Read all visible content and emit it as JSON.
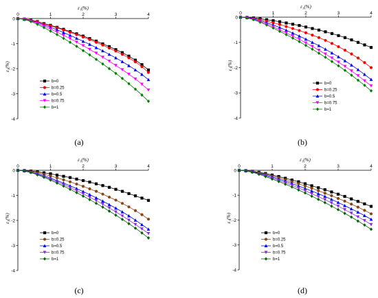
{
  "chart_data": [
    {
      "type": "line",
      "panel_label": "(a)",
      "xlabel": "ε₁(%)",
      "ylabel": "ε₃(%)",
      "xlim": [
        0,
        4
      ],
      "ylim": [
        -4,
        0
      ],
      "xticks": [
        "0",
        "1",
        "2",
        "3",
        "4"
      ],
      "yticks": [
        "0",
        "-1",
        "-2",
        "-3",
        "-4"
      ],
      "legend_position": "lower-left",
      "x": [
        0,
        0.2,
        0.4,
        0.6,
        0.8,
        1.0,
        1.2,
        1.4,
        1.6,
        1.8,
        2.0,
        2.2,
        2.4,
        2.6,
        2.8,
        3.0,
        3.2,
        3.4,
        3.6,
        3.8,
        4.0
      ],
      "series": [
        {
          "name": "b=0",
          "color": "#000000",
          "marker": "square",
          "values": [
            0,
            -0.02,
            -0.06,
            -0.12,
            -0.2,
            -0.27,
            -0.35,
            -0.43,
            -0.52,
            -0.61,
            -0.7,
            -0.8,
            -0.9,
            -1.01,
            -1.12,
            -1.24,
            -1.36,
            -1.5,
            -1.66,
            -1.84,
            -2.05
          ]
        },
        {
          "name": "b=0.25",
          "color": "#ff0000",
          "marker": "circle",
          "values": [
            0,
            -0.02,
            -0.07,
            -0.13,
            -0.21,
            -0.29,
            -0.37,
            -0.46,
            -0.55,
            -0.64,
            -0.74,
            -0.84,
            -0.95,
            -1.06,
            -1.18,
            -1.3,
            -1.43,
            -1.57,
            -1.73,
            -1.92,
            -2.15
          ]
        },
        {
          "name": "b=0.5",
          "color": "#0000ff",
          "marker": "triangle-up",
          "values": [
            0,
            -0.03,
            -0.08,
            -0.16,
            -0.25,
            -0.35,
            -0.45,
            -0.56,
            -0.67,
            -0.79,
            -0.91,
            -1.03,
            -1.16,
            -1.29,
            -1.43,
            -1.57,
            -1.72,
            -1.88,
            -2.05,
            -2.23,
            -2.44
          ]
        },
        {
          "name": "b=0.75",
          "color": "#ff00ff",
          "marker": "triangle-down",
          "values": [
            0,
            -0.03,
            -0.1,
            -0.19,
            -0.3,
            -0.42,
            -0.54,
            -0.67,
            -0.8,
            -0.94,
            -1.08,
            -1.23,
            -1.38,
            -1.54,
            -1.7,
            -1.87,
            -2.04,
            -2.22,
            -2.41,
            -2.62,
            -2.85
          ]
        },
        {
          "name": "b=1",
          "color": "#008000",
          "marker": "diamond",
          "values": [
            0,
            -0.04,
            -0.12,
            -0.23,
            -0.36,
            -0.5,
            -0.64,
            -0.79,
            -0.95,
            -1.11,
            -1.28,
            -1.45,
            -1.63,
            -1.81,
            -2.0,
            -2.19,
            -2.39,
            -2.6,
            -2.82,
            -3.05,
            -3.3
          ]
        }
      ]
    },
    {
      "type": "line",
      "panel_label": "(b)",
      "xlabel": "ε₁(%)",
      "ylabel": "ε₃(%)",
      "xlim": [
        0,
        4
      ],
      "ylim": [
        -4,
        0
      ],
      "xticks": [
        "0",
        "1",
        "2",
        "3",
        "4"
      ],
      "yticks": [
        "0",
        "-1",
        "-2",
        "-3",
        "-4"
      ],
      "legend_position": "lower-right",
      "x": [
        0,
        0.2,
        0.4,
        0.6,
        0.8,
        1.0,
        1.2,
        1.4,
        1.6,
        1.8,
        2.0,
        2.2,
        2.4,
        2.6,
        2.8,
        3.0,
        3.2,
        3.4,
        3.6,
        3.8,
        4.0
      ],
      "series": [
        {
          "name": "b=0",
          "color": "#000000",
          "marker": "square",
          "values": [
            0,
            -0.01,
            -0.03,
            -0.06,
            -0.1,
            -0.14,
            -0.18,
            -0.23,
            -0.28,
            -0.33,
            -0.39,
            -0.45,
            -0.51,
            -0.58,
            -0.65,
            -0.73,
            -0.81,
            -0.9,
            -1.0,
            -1.1,
            -1.2
          ]
        },
        {
          "name": "b=0.25",
          "color": "#ff0000",
          "marker": "circle",
          "values": [
            0,
            -0.02,
            -0.05,
            -0.1,
            -0.16,
            -0.22,
            -0.29,
            -0.37,
            -0.45,
            -0.53,
            -0.62,
            -0.71,
            -0.81,
            -0.92,
            -1.04,
            -1.17,
            -1.31,
            -1.46,
            -1.62,
            -1.8,
            -2.0
          ]
        },
        {
          "name": "b=0.5",
          "color": "#0000ff",
          "marker": "triangle-up",
          "values": [
            0,
            -0.02,
            -0.07,
            -0.14,
            -0.22,
            -0.31,
            -0.41,
            -0.52,
            -0.63,
            -0.75,
            -0.87,
            -1.0,
            -1.13,
            -1.27,
            -1.42,
            -1.57,
            -1.73,
            -1.9,
            -2.08,
            -2.27,
            -2.47
          ]
        },
        {
          "name": "b=0.75",
          "color": "#ff00ff",
          "marker": "triangle-down",
          "values": [
            0,
            -0.03,
            -0.09,
            -0.17,
            -0.27,
            -0.38,
            -0.5,
            -0.62,
            -0.75,
            -0.88,
            -1.02,
            -1.16,
            -1.31,
            -1.46,
            -1.62,
            -1.78,
            -1.95,
            -2.13,
            -2.32,
            -2.52,
            -2.72
          ]
        },
        {
          "name": "b=1",
          "color": "#008000",
          "marker": "diamond",
          "values": [
            0,
            -0.03,
            -0.1,
            -0.2,
            -0.31,
            -0.43,
            -0.56,
            -0.69,
            -0.83,
            -0.97,
            -1.12,
            -1.27,
            -1.43,
            -1.59,
            -1.76,
            -1.93,
            -2.11,
            -2.3,
            -2.5,
            -2.7,
            -2.92
          ]
        }
      ]
    },
    {
      "type": "line",
      "panel_label": "(c)",
      "xlabel": "ε₁(%)",
      "ylabel": "ε₃(%)",
      "xlim": [
        0,
        4
      ],
      "ylim": [
        -4,
        0
      ],
      "xticks": [
        "0",
        "1",
        "2",
        "3",
        "4"
      ],
      "yticks": [
        "0",
        "-1",
        "-2",
        "-3",
        "-4"
      ],
      "legend_position": "lower-left",
      "x": [
        0,
        0.2,
        0.4,
        0.6,
        0.8,
        1.0,
        1.2,
        1.4,
        1.6,
        1.8,
        2.0,
        2.2,
        2.4,
        2.6,
        2.8,
        3.0,
        3.2,
        3.4,
        3.6,
        3.8,
        4.0
      ],
      "series": [
        {
          "name": "b=0",
          "color": "#000000",
          "marker": "square",
          "values": [
            0,
            -0.01,
            -0.03,
            -0.06,
            -0.1,
            -0.14,
            -0.19,
            -0.24,
            -0.29,
            -0.35,
            -0.41,
            -0.47,
            -0.54,
            -0.61,
            -0.68,
            -0.76,
            -0.84,
            -0.93,
            -1.02,
            -1.11,
            -1.2
          ]
        },
        {
          "name": "b=0.25",
          "color": "#8b4513",
          "marker": "circle",
          "values": [
            0,
            -0.02,
            -0.05,
            -0.1,
            -0.16,
            -0.23,
            -0.3,
            -0.38,
            -0.46,
            -0.55,
            -0.64,
            -0.74,
            -0.84,
            -0.95,
            -1.07,
            -1.19,
            -1.32,
            -1.46,
            -1.61,
            -1.77,
            -1.95
          ]
        },
        {
          "name": "b=0.5",
          "color": "#0000ff",
          "marker": "triangle-up",
          "values": [
            0,
            -0.02,
            -0.07,
            -0.14,
            -0.22,
            -0.31,
            -0.41,
            -0.51,
            -0.62,
            -0.73,
            -0.85,
            -0.97,
            -1.1,
            -1.23,
            -1.37,
            -1.51,
            -1.66,
            -1.82,
            -1.99,
            -2.17,
            -2.35
          ]
        },
        {
          "name": "b=0.75",
          "color": "#8a2be2",
          "marker": "triangle-down",
          "values": [
            0,
            -0.03,
            -0.08,
            -0.16,
            -0.25,
            -0.35,
            -0.46,
            -0.57,
            -0.69,
            -0.81,
            -0.94,
            -1.07,
            -1.21,
            -1.35,
            -1.5,
            -1.66,
            -1.82,
            -1.99,
            -2.16,
            -2.34,
            -2.52
          ]
        },
        {
          "name": "b=1",
          "color": "#006400",
          "marker": "diamond",
          "values": [
            0,
            -0.03,
            -0.09,
            -0.18,
            -0.28,
            -0.39,
            -0.51,
            -0.63,
            -0.76,
            -0.89,
            -1.03,
            -1.17,
            -1.32,
            -1.47,
            -1.63,
            -1.79,
            -1.96,
            -2.13,
            -2.31,
            -2.5,
            -2.7
          ]
        }
      ]
    },
    {
      "type": "line",
      "panel_label": "(d)",
      "xlabel": "ε₁(%)",
      "ylabel": "ε₃(%)",
      "xlim": [
        0,
        4
      ],
      "ylim": [
        -4,
        0
      ],
      "xticks": [
        "0",
        "1",
        "2",
        "3",
        "4"
      ],
      "yticks": [
        "0",
        "-1",
        "-2",
        "-3",
        "-4"
      ],
      "legend_position": "lower-left",
      "x": [
        0,
        0.2,
        0.4,
        0.6,
        0.8,
        1.0,
        1.2,
        1.4,
        1.6,
        1.8,
        2.0,
        2.2,
        2.4,
        2.6,
        2.8,
        3.0,
        3.2,
        3.4,
        3.6,
        3.8,
        4.0
      ],
      "series": [
        {
          "name": "b=0",
          "color": "#000000",
          "marker": "square",
          "values": [
            0,
            -0.01,
            -0.04,
            -0.08,
            -0.13,
            -0.19,
            -0.25,
            -0.32,
            -0.39,
            -0.46,
            -0.54,
            -0.62,
            -0.7,
            -0.78,
            -0.87,
            -0.96,
            -1.05,
            -1.15,
            -1.25,
            -1.35,
            -1.45
          ]
        },
        {
          "name": "b=0.25",
          "color": "#8b4513",
          "marker": "circle",
          "values": [
            0,
            -0.02,
            -0.05,
            -0.1,
            -0.16,
            -0.23,
            -0.3,
            -0.38,
            -0.46,
            -0.54,
            -0.63,
            -0.72,
            -0.82,
            -0.92,
            -1.02,
            -1.13,
            -1.24,
            -1.36,
            -1.48,
            -1.61,
            -1.75
          ]
        },
        {
          "name": "b=0.5",
          "color": "#0000ff",
          "marker": "triangle-up",
          "values": [
            0,
            -0.02,
            -0.06,
            -0.12,
            -0.19,
            -0.27,
            -0.35,
            -0.44,
            -0.53,
            -0.63,
            -0.73,
            -0.83,
            -0.94,
            -1.05,
            -1.17,
            -1.29,
            -1.42,
            -1.55,
            -1.68,
            -1.82,
            -1.97
          ]
        },
        {
          "name": "b=0.75",
          "color": "#8a2be2",
          "marker": "triangle-down",
          "values": [
            0,
            -0.02,
            -0.07,
            -0.14,
            -0.22,
            -0.31,
            -0.4,
            -0.5,
            -0.6,
            -0.71,
            -0.82,
            -0.94,
            -1.06,
            -1.18,
            -1.31,
            -1.44,
            -1.58,
            -1.72,
            -1.87,
            -2.02,
            -2.18
          ]
        },
        {
          "name": "b=1",
          "color": "#006400",
          "marker": "diamond",
          "values": [
            0,
            -0.03,
            -0.08,
            -0.16,
            -0.25,
            -0.35,
            -0.45,
            -0.56,
            -0.67,
            -0.79,
            -0.91,
            -1.04,
            -1.17,
            -1.3,
            -1.44,
            -1.58,
            -1.73,
            -1.88,
            -2.04,
            -2.2,
            -2.37
          ]
        }
      ]
    }
  ]
}
